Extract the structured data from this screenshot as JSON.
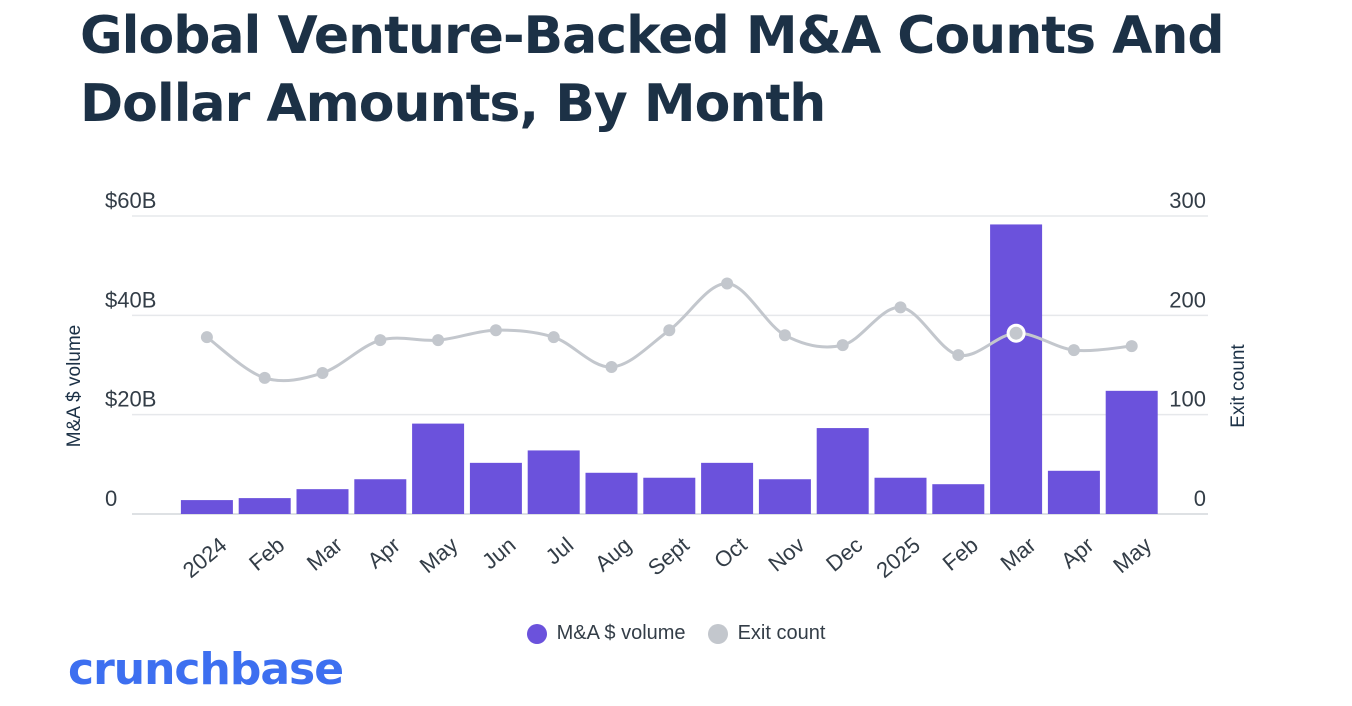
{
  "title": "Global Venture-Backed M&A Counts And Dollar Amounts, By Month",
  "brand": "crunchbase",
  "colors": {
    "bar": "#6b52dc",
    "line": "#c3c7cd",
    "title": "#1c3146",
    "brand": "#3d6ff0"
  },
  "legend": [
    {
      "name": "M&A $ volume",
      "color": "#6b52dc"
    },
    {
      "name": "Exit count",
      "color": "#c3c7cd"
    }
  ],
  "chart_data": {
    "type": "bar",
    "categories": [
      "2024",
      "Feb",
      "Mar",
      "Apr",
      "May",
      "Jun",
      "Jul",
      "Aug",
      "Sept",
      "Oct",
      "Nov",
      "Dec",
      "2025",
      "Feb",
      "Mar",
      "Apr",
      "May"
    ],
    "y_left": {
      "label": "M&A $ volume",
      "ticks": [
        "0",
        "$20B",
        "$40B",
        "$60B"
      ],
      "range": [
        0,
        60
      ]
    },
    "y_right": {
      "label": "Exit count",
      "ticks": [
        "0",
        "100",
        "200",
        "300"
      ],
      "range": [
        0,
        300
      ]
    },
    "series": [
      {
        "name": "M&A $ volume",
        "type": "bar",
        "axis": "left",
        "unit": "$B",
        "values": [
          2.8,
          3.2,
          5.0,
          7.0,
          18.2,
          10.3,
          12.8,
          8.3,
          7.3,
          10.3,
          7.0,
          17.3,
          7.3,
          6.0,
          58.3,
          8.7,
          24.8
        ]
      },
      {
        "name": "Exit count",
        "type": "line",
        "axis": "right",
        "values": [
          178,
          137,
          142,
          175,
          175,
          185,
          178,
          148,
          185,
          232,
          180,
          170,
          208,
          160,
          182,
          165,
          169
        ]
      }
    ],
    "highlighted_point": {
      "series": "Exit count",
      "category_index": 14
    },
    "grid": true,
    "legend_position": "bottom"
  }
}
